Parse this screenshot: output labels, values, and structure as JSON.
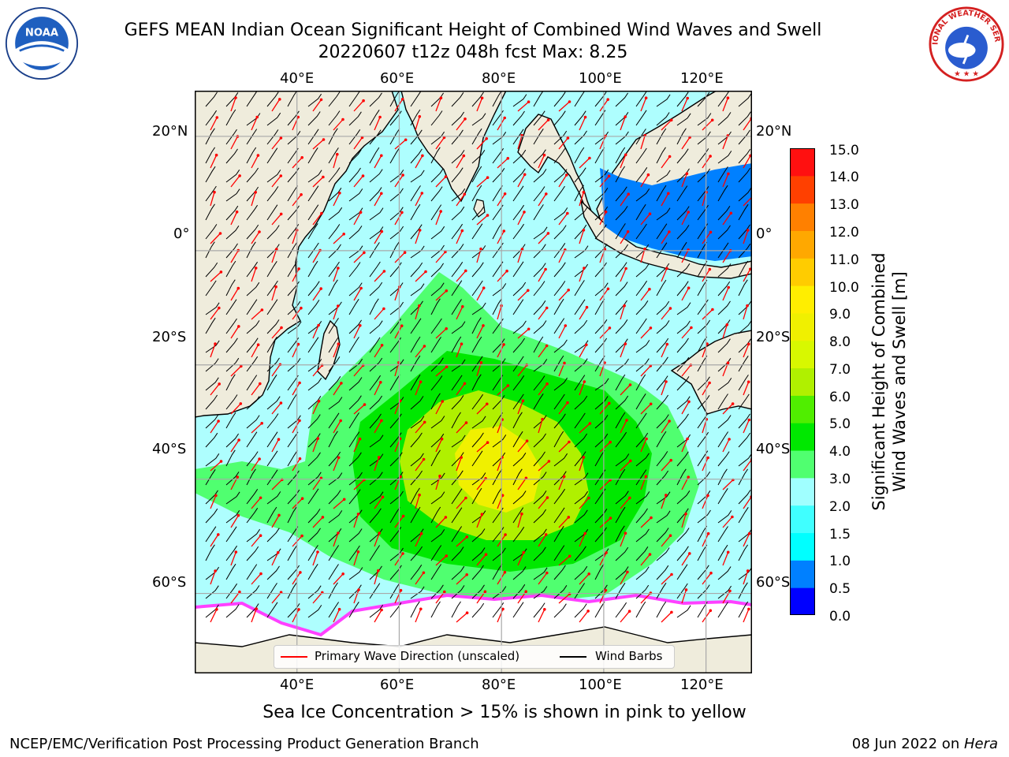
{
  "header": {
    "title": "GEFS MEAN Indian Ocean Significant Height of Combined Wind Waves and Swell",
    "subtitle": "20220607 t12z 048h fcst   Max: 8.25"
  },
  "logos": {
    "left": "noaa-logo",
    "right": "nws-logo",
    "right_text": "NATIONAL WEATHER SERVICE"
  },
  "map": {
    "lon_ticks": [
      "40°E",
      "60°E",
      "80°E",
      "100°E",
      "120°E"
    ],
    "lat_ticks": [
      "20°N",
      "0°",
      "20°S",
      "40°S",
      "60°S"
    ],
    "extent": {
      "lon": [
        20,
        129
      ],
      "lat": [
        -74,
        28
      ]
    },
    "land_color": "#efecdc",
    "ocean_base_color": "#aefefe",
    "ice_color": "#ffffff",
    "ice_edge_color": "#ff40ff"
  },
  "colorbar": {
    "label_line1": "Significant Height of Combined",
    "label_line2": "Wind Waves and Swell [m]",
    "ticks": [
      "0.0",
      "0.5",
      "1.0",
      "1.5",
      "2.0",
      "3.0",
      "4.0",
      "5.0",
      "6.0",
      "7.0",
      "8.0",
      "9.0",
      "10.0",
      "11.0",
      "12.0",
      "13.0",
      "14.0",
      "15.0"
    ],
    "colors": [
      "#0000ff",
      "#0080ff",
      "#00ffff",
      "#40ffff",
      "#a0ffff",
      "#50ff70",
      "#00e800",
      "#50ee00",
      "#b0f000",
      "#d8f800",
      "#f0f000",
      "#ffee00",
      "#ffcc00",
      "#ffa800",
      "#ff8000",
      "#ff4000",
      "#ff1010"
    ]
  },
  "legend": {
    "primary_wave": "Primary Wave Direction (unscaled)",
    "wind_barbs": "Wind Barbs",
    "primary_color": "#ff0000",
    "barb_color": "#000000"
  },
  "notes": {
    "ice": "Sea Ice Concentration > 15% is shown in pink to yellow"
  },
  "footer": {
    "left": "NCEP/EMC/Verification Post Processing Product Generation Branch",
    "date": "08 Jun 2022 on ",
    "host": "Hera"
  }
}
